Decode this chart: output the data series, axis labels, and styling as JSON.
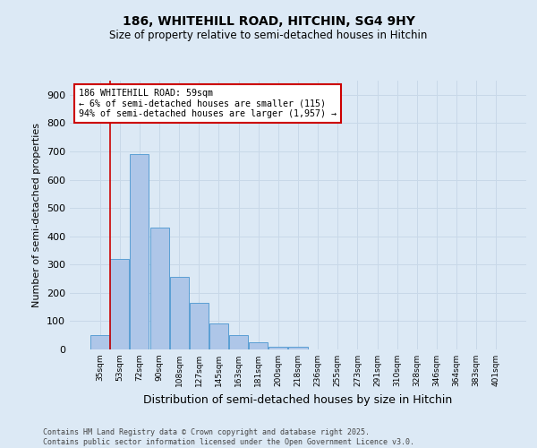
{
  "title1": "186, WHITEHILL ROAD, HITCHIN, SG4 9HY",
  "title2": "Size of property relative to semi-detached houses in Hitchin",
  "xlabel": "Distribution of semi-detached houses by size in Hitchin",
  "ylabel": "Number of semi-detached properties",
  "footnote": "Contains HM Land Registry data © Crown copyright and database right 2025.\nContains public sector information licensed under the Open Government Licence v3.0.",
  "categories": [
    "35sqm",
    "53sqm",
    "72sqm",
    "90sqm",
    "108sqm",
    "127sqm",
    "145sqm",
    "163sqm",
    "181sqm",
    "200sqm",
    "218sqm",
    "236sqm",
    "255sqm",
    "273sqm",
    "291sqm",
    "310sqm",
    "328sqm",
    "346sqm",
    "364sqm",
    "383sqm",
    "401sqm"
  ],
  "bar_values": [
    50,
    320,
    690,
    430,
    255,
    165,
    93,
    50,
    25,
    10,
    8,
    0,
    0,
    0,
    0,
    0,
    0,
    0,
    0,
    0,
    0
  ],
  "bar_color": "#aec6e8",
  "bar_edge_color": "#5a9fd4",
  "ylim": [
    0,
    950
  ],
  "yticks": [
    0,
    100,
    200,
    300,
    400,
    500,
    600,
    700,
    800,
    900
  ],
  "vline_x": 1.525,
  "annotation_title": "186 WHITEHILL ROAD: 59sqm",
  "annotation_line1": "← 6% of semi-detached houses are smaller (115)",
  "annotation_line2": "94% of semi-detached houses are larger (1,957) →",
  "vline_color": "#cc0000",
  "annotation_box_edge": "#cc0000",
  "grid_color": "#c8d8e8",
  "bg_color": "#dce9f5"
}
